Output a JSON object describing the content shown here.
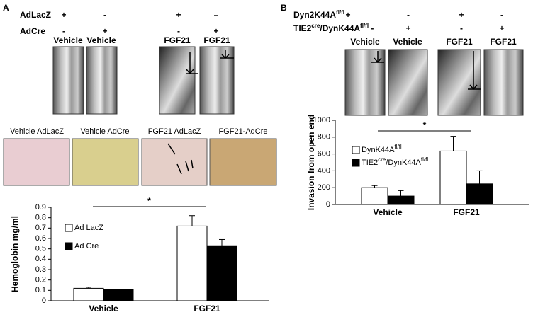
{
  "panels": [
    {
      "label": "A",
      "rows": [
        {
          "name": [
            {
              "text": "AdLacZ",
              "sup": false
            }
          ],
          "marks": [
            "+",
            "-",
            "+",
            "–"
          ]
        },
        {
          "name": [
            {
              "text": "AdCre",
              "sup": false
            }
          ],
          "marks": [
            "-",
            "+",
            "-",
            "+"
          ]
        }
      ],
      "image_labels": [
        "Vehicle",
        "Vehicle",
        "FGF21",
        "FGF21"
      ],
      "histology_labels": [
        "Vehicle AdLacZ",
        "Vehicle AdCre",
        "FGF21  AdLacZ",
        "FGF21-AdCre"
      ]
    },
    {
      "label": "B",
      "rows": [
        {
          "name": [
            {
              "text": "Dyn2K44A",
              "sup": false
            },
            {
              "text": "fl/fl",
              "sup": true
            }
          ],
          "marks": [
            "+",
            "-",
            "+",
            "-"
          ]
        },
        {
          "name": [
            {
              "text": "TIE2",
              "sup": false
            },
            {
              "text": "cre",
              "sup": true
            },
            {
              "text": "/DynK44A",
              "sup": false
            },
            {
              "text": "fl/fl",
              "sup": true
            },
            {
              "text": " -",
              "sup": false
            }
          ],
          "marks": [
            "",
            "+",
            "-",
            "+"
          ]
        }
      ],
      "image_labels": [
        "Vehicle",
        "Vehicle",
        "FGF21",
        "FGF21"
      ]
    }
  ],
  "chart_data": [
    {
      "type": "bar",
      "y_label": "Hemoglobin mg/ml",
      "annotation": "*",
      "categories": [
        "Vehicle",
        "FGF21"
      ],
      "series": [
        {
          "name": "Ad LacZ",
          "color": "#ffffff",
          "values": [
            0.12,
            0.72
          ],
          "errors": [
            0.01,
            0.1
          ]
        },
        {
          "name": "Ad Cre",
          "color": "#000000",
          "values": [
            0.11,
            0.53
          ],
          "errors": [
            0,
            0.06
          ]
        }
      ],
      "ylim": [
        0,
        0.9
      ],
      "yticks": [
        0,
        0.1,
        0.2,
        0.3,
        0.4,
        0.5,
        0.6,
        0.7,
        0.8,
        0.9
      ]
    },
    {
      "type": "bar",
      "y_label": "Invasion from open end",
      "annotation": "*",
      "categories": [
        "Vehicle",
        "FGF21"
      ],
      "series": [
        {
          "name": [
            {
              "text": "DynK44A",
              "sup": false
            },
            {
              "text": "fl/fl",
              "sup": true
            }
          ],
          "color": "#ffffff",
          "values": [
            200,
            635
          ],
          "errors": [
            25,
            175
          ]
        },
        {
          "name": [
            {
              "text": "TIE2",
              "sup": false
            },
            {
              "text": "cre",
              "sup": true
            },
            {
              "text": "/DynK44A",
              "sup": false
            },
            {
              "text": "fl/fl",
              "sup": true
            }
          ],
          "color": "#000000",
          "values": [
            100,
            245
          ],
          "errors": [
            65,
            155
          ]
        }
      ],
      "ylim": [
        0,
        1000
      ],
      "yticks": [
        0,
        200,
        400,
        600,
        800,
        1000
      ]
    }
  ]
}
